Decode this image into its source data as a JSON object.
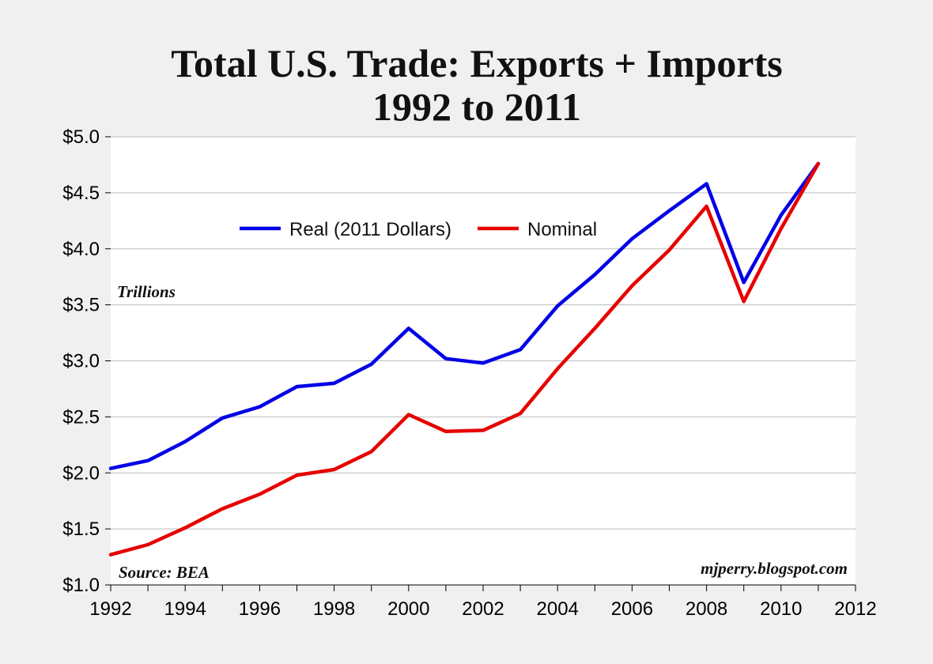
{
  "chart_data": {
    "type": "line",
    "title": "Total U.S. Trade: Exports + Imports",
    "subtitle": "1992 to 2011",
    "unit_note": "Trillions",
    "source": "Source: BEA",
    "watermark": "mjperry.blogspot.com",
    "xlim": [
      1992,
      2012
    ],
    "ylim": [
      1.0,
      5.0
    ],
    "x_ticks": [
      1992,
      1994,
      1996,
      1998,
      2000,
      2002,
      2004,
      2006,
      2008,
      2010,
      2012
    ],
    "x_tick_labels": [
      "1992",
      "1994",
      "1996",
      "1998",
      "2000",
      "2002",
      "2004",
      "2006",
      "2008",
      "2010",
      "2012"
    ],
    "y_ticks": [
      1.0,
      1.5,
      2.0,
      2.5,
      3.0,
      3.5,
      4.0,
      4.5,
      5.0
    ],
    "y_tick_labels": [
      "$1.0",
      "$1.5",
      "$2.0",
      "$2.5",
      "$3.0",
      "$3.5",
      "$4.0",
      "$4.5",
      "$5.0"
    ],
    "grid": true,
    "legend_position": "upper-center",
    "x": [
      1992,
      1993,
      1994,
      1995,
      1996,
      1997,
      1998,
      1999,
      2000,
      2001,
      2002,
      2003,
      2004,
      2005,
      2006,
      2007,
      2008,
      2009,
      2010,
      2011
    ],
    "series": [
      {
        "name": "Real (2011 Dollars)",
        "color": "#0000e6",
        "values": [
          2.04,
          2.11,
          2.28,
          2.49,
          2.59,
          2.77,
          2.8,
          2.97,
          3.29,
          3.02,
          2.98,
          3.1,
          3.49,
          3.77,
          4.09,
          4.34,
          4.58,
          3.7,
          4.3,
          4.76
        ]
      },
      {
        "name": "Nominal",
        "color": "#e60000",
        "values": [
          1.27,
          1.36,
          1.51,
          1.68,
          1.81,
          1.98,
          2.03,
          2.19,
          2.52,
          2.37,
          2.38,
          2.53,
          2.93,
          3.29,
          3.67,
          3.99,
          4.38,
          3.53,
          4.18,
          4.76
        ]
      }
    ]
  }
}
